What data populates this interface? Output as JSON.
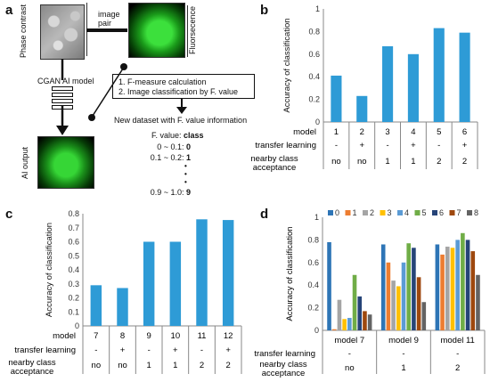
{
  "panel_labels": {
    "a": "a",
    "b": "b",
    "c": "c",
    "d": "d"
  },
  "panel_a": {
    "phase_contrast": "Phase contrast",
    "image_pair": "image\npair",
    "fluorescence": "Fluorsecence",
    "model_label": "CGAN AI model",
    "ai_output": "AI output",
    "step1": "1. F-measure calculation",
    "step2": "2. Image classification by F. value",
    "new_dataset": "New dataset with F. value information",
    "fvalue_header": "F. value: ",
    "class_header": "class",
    "mapping": [
      {
        "range": "0 ~ 0.1:",
        "class": "0"
      },
      {
        "range": "0.1 ~ 0.2:",
        "class": "1"
      },
      {
        "range": "0.9 ~ 1.0:",
        "class": "9"
      }
    ],
    "dots": "•\n•\n•"
  },
  "chart_data": [
    {
      "type": "bar",
      "panel": "b",
      "ylabel": "Accuracy of classification",
      "ylim": [
        0,
        1
      ],
      "yticks": [
        "0",
        "0.2",
        "0.4",
        "0.6",
        "0.8",
        "1"
      ],
      "categories": [
        "1",
        "2",
        "3",
        "4",
        "5",
        "6"
      ],
      "values": [
        0.41,
        0.23,
        0.67,
        0.6,
        0.83,
        0.79
      ],
      "color": "#2e9bd6",
      "row_labels": [
        "model",
        "transfer learning",
        "nearby class\nacceptance"
      ],
      "transfer_learning": [
        "-",
        "+",
        "-",
        "+",
        "-",
        "+"
      ],
      "nearby_class_acceptance": [
        "no",
        "no",
        "1",
        "1",
        "2",
        "2"
      ]
    },
    {
      "type": "bar",
      "panel": "c",
      "ylabel": "Accuracy of classification",
      "ylim": [
        0,
        0.8
      ],
      "yticks": [
        "0",
        "0.1",
        "0.2",
        "0.3",
        "0.4",
        "0.5",
        "0.6",
        "0.7",
        "0.8"
      ],
      "categories": [
        "7",
        "8",
        "9",
        "10",
        "11",
        "12"
      ],
      "values": [
        0.29,
        0.27,
        0.6,
        0.6,
        0.76,
        0.755
      ],
      "color": "#2e9bd6",
      "row_labels": [
        "model",
        "transfer learning",
        "nearby class\nacceptance"
      ],
      "transfer_learning": [
        "-",
        "+",
        "-",
        "+",
        "-",
        "+"
      ],
      "nearby_class_acceptance": [
        "no",
        "no",
        "1",
        "1",
        "2",
        "2"
      ]
    },
    {
      "type": "bar",
      "panel": "d",
      "ylabel": "Accuracy of classification",
      "ylim": [
        0,
        1
      ],
      "yticks": [
        "0",
        "0.2",
        "0.4",
        "0.6",
        "0.8",
        "1"
      ],
      "categories": [
        "model 7",
        "model 9",
        "model 11"
      ],
      "transfer_learning": [
        "-",
        "-",
        "-"
      ],
      "nearby_class_acceptance": [
        "no",
        "1",
        "2"
      ],
      "row_labels": [
        "transfer learning",
        "nearby class\nacceptance"
      ],
      "series": [
        {
          "name": "0",
          "color": "#2e75b6",
          "values": [
            0.78,
            0.76,
            0.76
          ]
        },
        {
          "name": "1",
          "color": "#ed7d31",
          "values": [
            0.01,
            0.6,
            0.67
          ]
        },
        {
          "name": "2",
          "color": "#a5a5a5",
          "values": [
            0.27,
            0.44,
            0.74
          ]
        },
        {
          "name": "3",
          "color": "#ffc000",
          "values": [
            0.1,
            0.39,
            0.73
          ]
        },
        {
          "name": "4",
          "color": "#5b9bd5",
          "values": [
            0.11,
            0.6,
            0.8
          ]
        },
        {
          "name": "5",
          "color": "#70ad47",
          "values": [
            0.49,
            0.77,
            0.86
          ]
        },
        {
          "name": "6",
          "color": "#264478",
          "values": [
            0.3,
            0.73,
            0.8
          ]
        },
        {
          "name": "7",
          "color": "#9e480e",
          "values": [
            0.17,
            0.47,
            0.7
          ]
        },
        {
          "name": "8",
          "color": "#636363",
          "values": [
            0.14,
            0.25,
            0.49
          ]
        }
      ]
    }
  ]
}
